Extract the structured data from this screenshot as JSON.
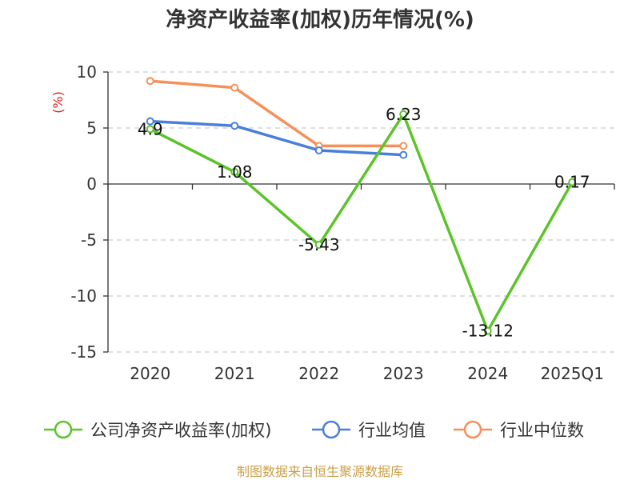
{
  "chart_data": {
    "type": "line",
    "title": "净资产收益率(加权)历年情况(%)",
    "ylabel": "(%)",
    "categories": [
      "2020",
      "2021",
      "2022",
      "2023",
      "2024",
      "2025Q1"
    ],
    "ylim": [
      -15,
      10
    ],
    "yticks": [
      10,
      5,
      0,
      -5,
      -10,
      -15
    ],
    "ytick_labels": [
      "10",
      "5",
      "0",
      "-5",
      "-10",
      "-15"
    ],
    "grid": true,
    "legend_position": "bottom",
    "series": [
      {
        "name": "公司净资产收益率(加权)",
        "color": "#5cc32a",
        "values": [
          4.9,
          1.08,
          -5.43,
          6.23,
          -13.12,
          0.17
        ],
        "labels": [
          "4.9",
          "1.08",
          "-5.43",
          "6.23",
          "-13.12",
          "0.17"
        ]
      },
      {
        "name": "行业均值",
        "color": "#4a7fd9",
        "values": [
          5.6,
          5.2,
          3.0,
          2.6,
          null,
          null
        ]
      },
      {
        "name": "行业中位数",
        "color": "#f59158",
        "values": [
          9.2,
          8.6,
          3.4,
          3.4,
          null,
          null
        ]
      }
    ]
  },
  "footer": {
    "source": "制图数据来自恒生聚源数据库"
  }
}
